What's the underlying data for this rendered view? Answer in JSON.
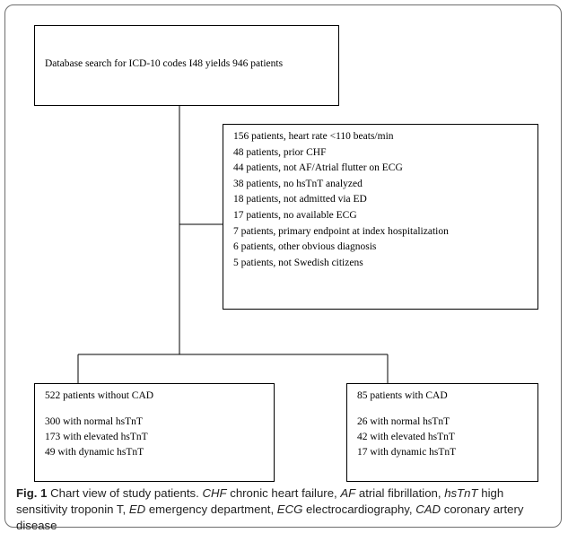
{
  "search_box": {
    "text": "Database search for ICD-10 codes I48 yields 946 patients"
  },
  "exclusions": [
    "156 patients, heart rate <110 beats/min",
    "48 patients, prior CHF",
    "44 patients, not AF/Atrial flutter on ECG",
    "38 patients, no hsTnT analyzed",
    "18 patients, not admitted via ED",
    "17 patients, no available ECG",
    "7 patients, primary endpoint at index hospitalization",
    "6 patients, other obvious diagnosis",
    "5 patients, not Swedish citizens"
  ],
  "groups": [
    {
      "title": "522 patients without CAD",
      "lines": [
        "300 with normal hsTnT",
        "173 with elevated hsTnT",
        "49 with dynamic hsTnT"
      ]
    },
    {
      "title": "85 patients with CAD",
      "lines": [
        "26 with normal hsTnT",
        "42 with elevated hsTnT",
        "17 with dynamic hsTnT"
      ]
    }
  ],
  "caption": {
    "label": "Fig. 1",
    "segments": [
      "Chart view of study patients.",
      "CHF",
      "chronic heart failure,",
      "AF",
      "atrial fibrillation,",
      "hsTnT",
      "high sensitivity troponin T,",
      "ED",
      "emergency department,",
      "ECG",
      "electrocardiography,",
      "CAD",
      "coronary artery disease"
    ]
  }
}
